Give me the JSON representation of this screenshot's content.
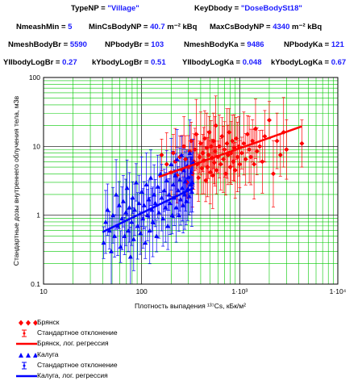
{
  "header": {
    "row1": [
      {
        "key": "TypeNP",
        "eq": " = ",
        "value": "\"Village\""
      },
      {
        "key": "KeyDbody",
        "eq": " = ",
        "value": "\"DoseBodySt18\""
      }
    ],
    "row2": [
      {
        "key": "NmeashMin",
        "eq": " = ",
        "value": "5"
      },
      {
        "key": "MinCsBodyNP",
        "eq": " = ",
        "value": "40.7",
        "unit": " m⁻² kBq"
      },
      {
        "key": "MaxCsBodyNP",
        "eq": " = ",
        "value": "4340",
        "unit": " m⁻² kBq"
      }
    ],
    "row3": [
      {
        "key": "NmeshBodyBr",
        "eq": " = ",
        "value": "5590"
      },
      {
        "key": "NPbodyBr",
        "eq": " = ",
        "value": "103"
      },
      {
        "key": "NmeshBodyKa",
        "eq": " = ",
        "value": "9486"
      },
      {
        "key": "NPbodyKa",
        "eq": " = ",
        "value": "121"
      }
    ],
    "row4": [
      {
        "key": "YIIbodyLogBr",
        "eq": " = ",
        "value": "0.27"
      },
      {
        "key": "kYbodyLogBr",
        "eq": " = ",
        "value": "0.51"
      },
      {
        "key": "YIIbodyLogKa",
        "eq": " = ",
        "value": "0.048"
      },
      {
        "key": "kYbodyLogKa",
        "eq": " = ",
        "value": "0.67"
      }
    ]
  },
  "chart_data": {
    "type": "scatter",
    "title": "",
    "xlabel": "Плотность выпадения ¹³⁷Cs, кБк/м²",
    "ylabel": "Стандартные дозы внутреннего облучения тела, мЗв",
    "x_scale": "log",
    "y_scale": "log",
    "xlim": [
      10,
      10000
    ],
    "ylim": [
      0.1,
      100
    ],
    "x_ticks": [
      "10",
      "100",
      "1·10³",
      "1·10⁴"
    ],
    "y_ticks": [
      "0.1",
      "1",
      "10",
      "100"
    ],
    "grid": true,
    "legend_position": "bottom",
    "legend": [
      {
        "label": "Брянск",
        "kind": "marker",
        "color": "#ff0000"
      },
      {
        "label": "Стандартное отклонение",
        "kind": "errorbar",
        "color": "#ff0000"
      },
      {
        "label": "Брянск, лог. регрессия",
        "kind": "line",
        "color": "#ff0000"
      },
      {
        "label": "Калуга",
        "kind": "marker",
        "color": "#0000ff"
      },
      {
        "label": "Стандартное отклонение",
        "kind": "errorbar",
        "color": "#0000ff"
      },
      {
        "label": "Калуга, лог. регрессия",
        "kind": "line",
        "color": "#0000ff"
      }
    ],
    "series": [
      {
        "name": "Брянск",
        "marker": "diamond",
        "color": "#ff0000",
        "points": [
          [
            160,
            7.5
          ],
          [
            180,
            5.5
          ],
          [
            200,
            4.2
          ],
          [
            210,
            8
          ],
          [
            220,
            6
          ],
          [
            230,
            3.8
          ],
          [
            245,
            7
          ],
          [
            260,
            4.5
          ],
          [
            270,
            10
          ],
          [
            280,
            6.5
          ],
          [
            290,
            3
          ],
          [
            300,
            5
          ],
          [
            310,
            8.5
          ],
          [
            320,
            12
          ],
          [
            330,
            4
          ],
          [
            340,
            6
          ],
          [
            350,
            9
          ],
          [
            360,
            15
          ],
          [
            370,
            5.5
          ],
          [
            380,
            3.5
          ],
          [
            390,
            7
          ],
          [
            400,
            11
          ],
          [
            410,
            4.8
          ],
          [
            420,
            8
          ],
          [
            430,
            6.2
          ],
          [
            440,
            13
          ],
          [
            450,
            3.2
          ],
          [
            460,
            9.5
          ],
          [
            470,
            5
          ],
          [
            480,
            7.5
          ],
          [
            490,
            16
          ],
          [
            500,
            4.2
          ],
          [
            510,
            10
          ],
          [
            520,
            6.8
          ],
          [
            530,
            3.8
          ],
          [
            540,
            12
          ],
          [
            550,
            5.8
          ],
          [
            560,
            8.5
          ],
          [
            570,
            20
          ],
          [
            580,
            4.5
          ],
          [
            600,
            7
          ],
          [
            620,
            10
          ],
          [
            640,
            5.5
          ],
          [
            660,
            14
          ],
          [
            680,
            6.5
          ],
          [
            700,
            9
          ],
          [
            720,
            4
          ],
          [
            740,
            11
          ],
          [
            760,
            7.5
          ],
          [
            780,
            16
          ],
          [
            800,
            5
          ],
          [
            820,
            8
          ],
          [
            840,
            12
          ],
          [
            860,
            6
          ],
          [
            880,
            9.5
          ],
          [
            900,
            4.5
          ],
          [
            920,
            13
          ],
          [
            950,
            7
          ],
          [
            980,
            10
          ],
          [
            1000,
            5.5
          ],
          [
            1050,
            8
          ],
          [
            1100,
            11
          ],
          [
            1150,
            6.5
          ],
          [
            1200,
            15
          ],
          [
            1250,
            9
          ],
          [
            1300,
            7
          ],
          [
            1350,
            12
          ],
          [
            1400,
            5.5
          ],
          [
            1450,
            18
          ],
          [
            1500,
            8.5
          ],
          [
            1600,
            10
          ],
          [
            1700,
            6
          ],
          [
            1800,
            14
          ],
          [
            2000,
            24
          ],
          [
            2200,
            4
          ],
          [
            2400,
            12
          ],
          [
            2600,
            7.5
          ],
          [
            2800,
            16
          ],
          [
            3000,
            9
          ],
          [
            4300,
            11
          ]
        ],
        "regression": [
          [
            150,
            3.6
          ],
          [
            4300,
            19.5
          ]
        ]
      },
      {
        "name": "Калуга",
        "marker": "triangle",
        "color": "#0000ff",
        "points": [
          [
            41,
            0.4
          ],
          [
            43,
            0.8
          ],
          [
            45,
            1.2
          ],
          [
            47,
            0.6
          ],
          [
            49,
            0.3
          ],
          [
            51,
            1
          ],
          [
            53,
            0.5
          ],
          [
            55,
            2
          ],
          [
            57,
            0.7
          ],
          [
            59,
            1.4
          ],
          [
            61,
            0.35
          ],
          [
            63,
            0.9
          ],
          [
            65,
            1.6
          ],
          [
            67,
            0.5
          ],
          [
            69,
            1.1
          ],
          [
            71,
            2.5
          ],
          [
            73,
            0.6
          ],
          [
            75,
            1.3
          ],
          [
            77,
            0.25
          ],
          [
            79,
            0.8
          ],
          [
            81,
            1.8
          ],
          [
            83,
            0.45
          ],
          [
            85,
            1.2
          ],
          [
            88,
            3
          ],
          [
            91,
            0.7
          ],
          [
            94,
            1.5
          ],
          [
            97,
            0.55
          ],
          [
            100,
            2.2
          ],
          [
            103,
            0.9
          ],
          [
            106,
            1.4
          ],
          [
            109,
            0.4
          ],
          [
            112,
            2.8
          ],
          [
            115,
            1
          ],
          [
            118,
            1.7
          ],
          [
            121,
            0.6
          ],
          [
            124,
            3.5
          ],
          [
            127,
            1.2
          ],
          [
            130,
            0.8
          ],
          [
            134,
            2
          ],
          [
            138,
            1.5
          ],
          [
            142,
            0.5
          ],
          [
            146,
            2.6
          ],
          [
            150,
            1.1
          ],
          [
            155,
            4
          ],
          [
            160,
            1.8
          ],
          [
            165,
            0.9
          ],
          [
            170,
            2.3
          ],
          [
            175,
            1.3
          ],
          [
            180,
            3.2
          ],
          [
            185,
            0.7
          ],
          [
            190,
            2
          ],
          [
            195,
            1.5
          ],
          [
            200,
            5.5
          ],
          [
            205,
            1
          ],
          [
            210,
            2.8
          ],
          [
            215,
            1.8
          ],
          [
            220,
            3.8
          ],
          [
            225,
            1.3
          ],
          [
            230,
            6.5
          ],
          [
            235,
            2.3
          ],
          [
            240,
            1
          ],
          [
            245,
            3.3
          ],
          [
            250,
            1.7
          ],
          [
            255,
            7.5
          ],
          [
            260,
            2.5
          ],
          [
            265,
            1.4
          ],
          [
            270,
            4.5
          ],
          [
            275,
            2
          ],
          [
            280,
            3.1
          ],
          [
            285,
            1.6
          ],
          [
            290,
            5.2
          ],
          [
            295,
            2.4
          ],
          [
            300,
            3.6
          ],
          [
            305,
            1.9
          ],
          [
            310,
            8
          ],
          [
            315,
            2.8
          ],
          [
            320,
            4.2
          ],
          [
            325,
            2.2
          ],
          [
            330,
            3
          ],
          [
            335,
            5.8
          ]
        ],
        "regression": [
          [
            40,
            0.57
          ],
          [
            340,
            2.5
          ]
        ]
      }
    ]
  }
}
